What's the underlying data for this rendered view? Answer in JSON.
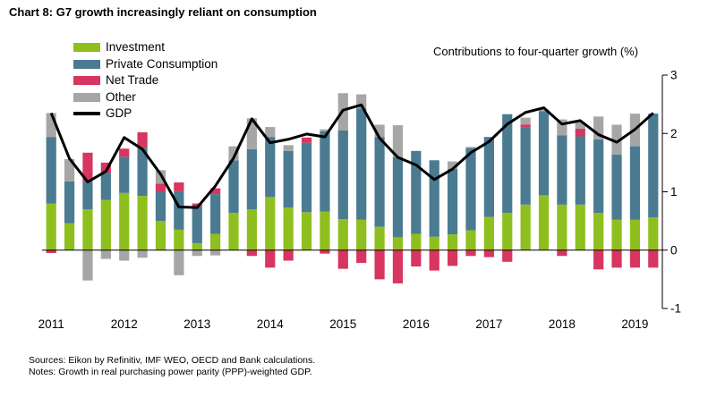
{
  "title": "Chart 8:  G7 growth increasingly reliant on consumption",
  "sources": "Sources:  Eikon by Refinitiv, IMF WEO, OECD and Bank calculations.",
  "notes": "Notes:  Growth in real purchasing power parity (PPP)-weighted GDP.",
  "colors": {
    "investment": "#8fbf1f",
    "private_consumption": "#4a7b91",
    "net_trade": "#d6365f",
    "other": "#a6a6a6",
    "gdp": "#000000"
  },
  "chart_data": {
    "type": "bar",
    "stacked": true,
    "ylabel": "Contributions to four-quarter growth (%)",
    "ylim": [
      -1,
      3
    ],
    "yticks": [
      "-1",
      "0",
      "1",
      "2",
      "3"
    ],
    "xticks": [
      "2011",
      "2012",
      "2013",
      "2014",
      "2015",
      "2016",
      "2017",
      "2018",
      "2019"
    ],
    "x": [
      "2011Q1",
      "2011Q2",
      "2011Q3",
      "2011Q4",
      "2012Q1",
      "2012Q2",
      "2012Q3",
      "2012Q4",
      "2013Q1",
      "2013Q2",
      "2013Q3",
      "2013Q4",
      "2014Q1",
      "2014Q2",
      "2014Q3",
      "2014Q4",
      "2015Q1",
      "2015Q2",
      "2015Q3",
      "2015Q4",
      "2016Q1",
      "2016Q2",
      "2016Q3",
      "2016Q4",
      "2017Q1",
      "2017Q2",
      "2017Q3",
      "2017Q4",
      "2018Q1",
      "2018Q2",
      "2018Q3",
      "2018Q4",
      "2019Q1",
      "2019Q2"
    ],
    "legend_position": "top-left",
    "series": [
      {
        "name": "Investment",
        "key": "investment",
        "values": [
          0.8,
          0.46,
          0.7,
          0.86,
          0.98,
          0.93,
          0.5,
          0.35,
          0.12,
          0.28,
          0.64,
          0.7,
          0.91,
          0.73,
          0.65,
          0.66,
          0.53,
          0.52,
          0.4,
          0.22,
          0.28,
          0.23,
          0.27,
          0.34,
          0.57,
          0.64,
          0.78,
          0.94,
          0.78,
          0.78,
          0.64,
          0.52,
          0.52,
          0.56
        ]
      },
      {
        "name": "Private Consumption",
        "key": "private_consumption",
        "values": [
          1.14,
          0.72,
          0.47,
          0.46,
          0.62,
          0.83,
          0.5,
          0.66,
          0.63,
          0.68,
          0.9,
          1.03,
          1.03,
          0.97,
          1.19,
          1.38,
          1.52,
          1.91,
          1.54,
          1.37,
          1.42,
          1.31,
          1.12,
          1.41,
          1.37,
          1.69,
          1.33,
          1.44,
          1.19,
          1.17,
          1.26,
          1.12,
          1.26,
          1.78
        ]
      },
      {
        "name": "Net Trade",
        "key": "net_trade",
        "values": [
          -0.05,
          0.0,
          0.5,
          0.18,
          0.14,
          0.26,
          0.14,
          0.15,
          0.05,
          0.1,
          0.0,
          -0.1,
          -0.3,
          -0.18,
          0.09,
          -0.06,
          -0.32,
          -0.22,
          -0.5,
          -0.57,
          -0.28,
          -0.35,
          -0.27,
          -0.1,
          -0.12,
          -0.2,
          0.04,
          0.0,
          -0.1,
          0.13,
          -0.33,
          -0.3,
          -0.3,
          -0.3
        ]
      },
      {
        "name": "Other",
        "key": "other",
        "values": [
          0.41,
          0.38,
          -0.52,
          -0.15,
          -0.18,
          -0.13,
          0.23,
          -0.43,
          -0.1,
          -0.09,
          0.24,
          0.53,
          0.17,
          0.1,
          0.0,
          0.03,
          0.64,
          0.24,
          0.21,
          0.55,
          0.0,
          0.0,
          0.13,
          0.02,
          0.0,
          0.0,
          0.12,
          0.03,
          0.27,
          0.11,
          0.39,
          0.51,
          0.56,
          0.0
        ]
      }
    ],
    "gdp": {
      "name": "GDP",
      "key": "gdp",
      "values": [
        2.35,
        1.57,
        1.17,
        1.35,
        1.93,
        1.73,
        1.3,
        0.74,
        0.73,
        1.1,
        1.58,
        2.25,
        1.84,
        1.9,
        1.99,
        1.94,
        2.4,
        2.49,
        1.92,
        1.59,
        1.46,
        1.21,
        1.39,
        1.67,
        1.86,
        2.16,
        2.36,
        2.44,
        2.16,
        2.22,
        1.98,
        1.85,
        2.07,
        2.35
      ]
    }
  }
}
